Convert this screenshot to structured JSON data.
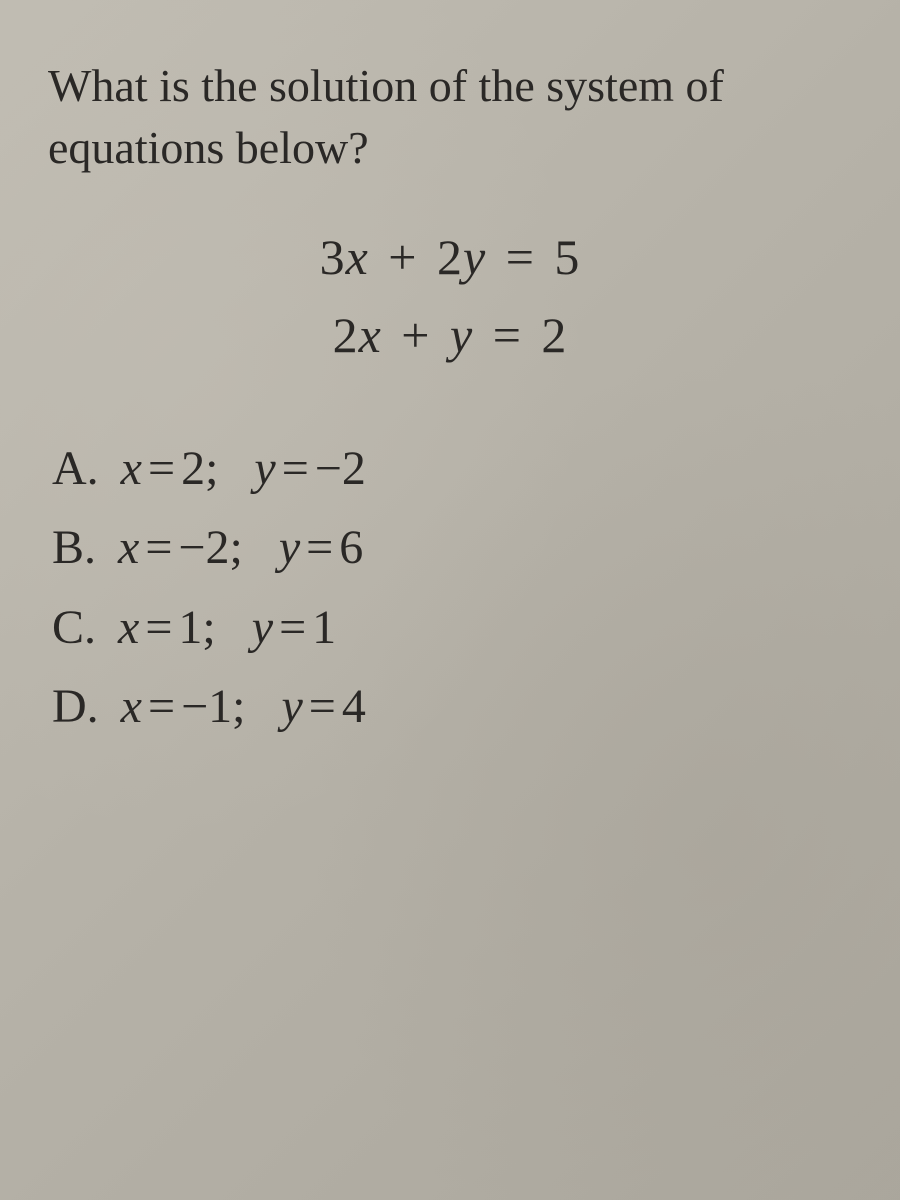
{
  "question": "What is the solution of the system of equations below?",
  "equations": {
    "eq1": {
      "coef_x": "3",
      "var_x": "x",
      "op": "+",
      "coef_y": "2",
      "var_y": "y",
      "eq": "=",
      "rhs": "5"
    },
    "eq2": {
      "coef_x": "2",
      "var_x": "x",
      "op": "+",
      "coef_y": "",
      "var_y": "y",
      "eq": "=",
      "rhs": "2"
    }
  },
  "choices": [
    {
      "letter": "A.",
      "x_val": "2",
      "y_val": "−2"
    },
    {
      "letter": "B.",
      "x_val": "−2",
      "y_val": "6"
    },
    {
      "letter": "C.",
      "x_val": "1",
      "y_val": "1"
    },
    {
      "letter": "D.",
      "x_val": "−1",
      "y_val": "4"
    }
  ]
}
